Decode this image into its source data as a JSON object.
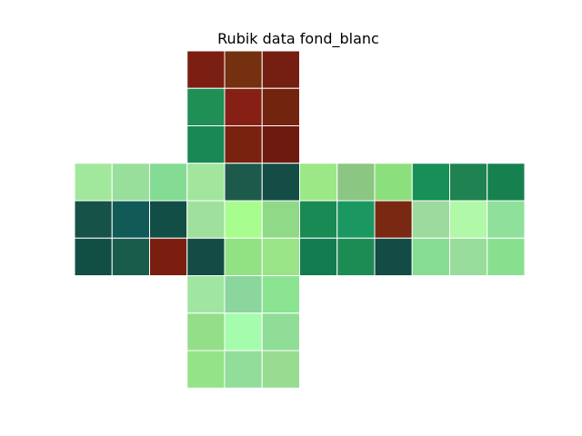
{
  "chart_data": {
    "type": "heatmap",
    "title": "Rubik data fond_blanc",
    "axes_visible": false,
    "grid_line_color": "#ffffff",
    "faces": {
      "U": [
        [
          "#7a1f12",
          "#74300f",
          "#741f11"
        ],
        [
          "#1f8f55",
          "#862014",
          "#73240f"
        ],
        [
          "#198854",
          "#78220f",
          "#6e1a10"
        ]
      ],
      "L": [
        [
          "#a2e89c",
          "#99df9c",
          "#84db94"
        ],
        [
          "#165248",
          "#115a57",
          "#124e46"
        ],
        [
          "#114e44",
          "#1a5c4c",
          "#7a1e10"
        ]
      ],
      "F": [
        [
          "#a2e69e",
          "#1d5a4c",
          "#134d46"
        ],
        [
          "#9fe19c",
          "#a8fd8f",
          "#90da87"
        ],
        [
          "#134c44",
          "#91e282",
          "#98e486"
        ]
      ],
      "R": [
        [
          "#9de886",
          "#8bc683",
          "#8cdf7d"
        ],
        [
          "#1a8a55",
          "#1b9761",
          "#792911"
        ],
        [
          "#137b50",
          "#1d8b54",
          "#124c44"
        ]
      ],
      "B": [
        [
          "#178f57",
          "#1e8350",
          "#16814f"
        ],
        [
          "#9cdb9d",
          "#b1f8a9",
          "#8fe09b"
        ],
        [
          "#87dd91",
          "#98dd9b",
          "#88e08f"
        ]
      ],
      "D": [
        [
          "#a1e5a2",
          "#8ad69c",
          "#8be492"
        ],
        [
          "#94de8a",
          "#a6fcad",
          "#90dd98"
        ],
        [
          "#93e486",
          "#91dd9a",
          "#97dc90"
        ]
      ]
    },
    "layout": [
      {
        "face": "U",
        "row": 0,
        "col": 1
      },
      {
        "face": "L",
        "row": 1,
        "col": 0
      },
      {
        "face": "F",
        "row": 1,
        "col": 1
      },
      {
        "face": "R",
        "row": 1,
        "col": 2
      },
      {
        "face": "B",
        "row": 1,
        "col": 3
      },
      {
        "face": "D",
        "row": 2,
        "col": 1
      }
    ]
  }
}
